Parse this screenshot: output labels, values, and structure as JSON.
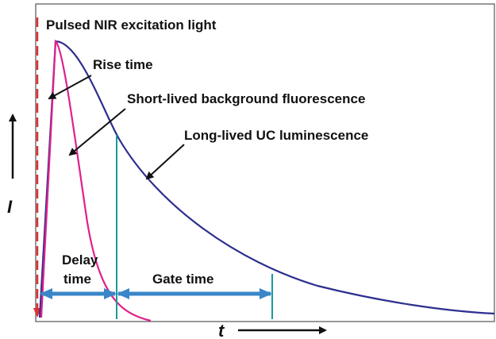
{
  "labels": {
    "excitation": "Pulsed NIR excitation light",
    "rise_time": "Rise time",
    "short_lived": "Short-lived background fluorescence",
    "long_lived": "Long-lived UC luminescence",
    "intensity": "I",
    "time": "t",
    "delay_time": [
      "Delay",
      "time"
    ],
    "gate_time": "Gate time"
  }
}
